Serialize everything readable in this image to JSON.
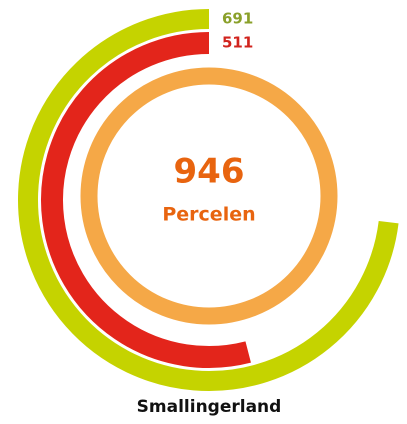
{
  "chart_data": {
    "type": "radial_bar",
    "title": "Smallingerland",
    "total": 946,
    "total_label": "Percelen",
    "total_color": "#f5a847",
    "values": [
      691,
      511
    ],
    "colors": [
      "#c5d300",
      "#e3251b"
    ],
    "label_colors": [
      "#8aa02a",
      "#d1231d"
    ]
  }
}
